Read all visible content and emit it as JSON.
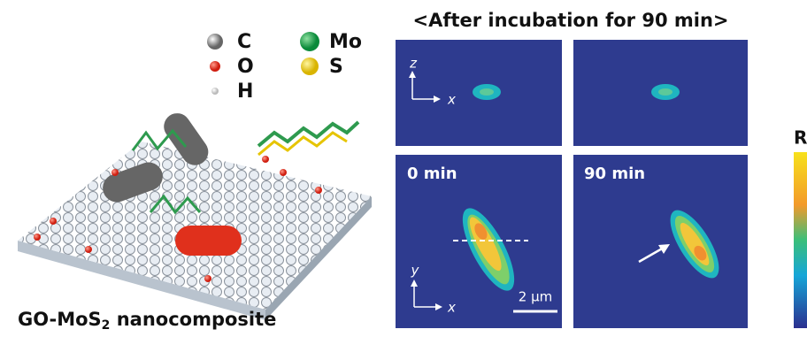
{
  "legend": {
    "items": [
      {
        "label": "C"
      },
      {
        "label": "Mo"
      },
      {
        "label": "O"
      },
      {
        "label": "S"
      },
      {
        "label": "H"
      }
    ]
  },
  "caption": {
    "main": "GO-MoS",
    "sub": "2",
    "rest": " nanocomposite"
  },
  "title": "<After incubation for 90 min>",
  "panels": {
    "axes_top": {
      "vertical": "z",
      "horizontal": "x"
    },
    "axes_bottom": {
      "vertical": "y",
      "horizontal": "x"
    },
    "time_left": "0 min",
    "time_right": "90 min",
    "scale_bar": "2 μm"
  },
  "colorbar": {
    "label": "R"
  }
}
